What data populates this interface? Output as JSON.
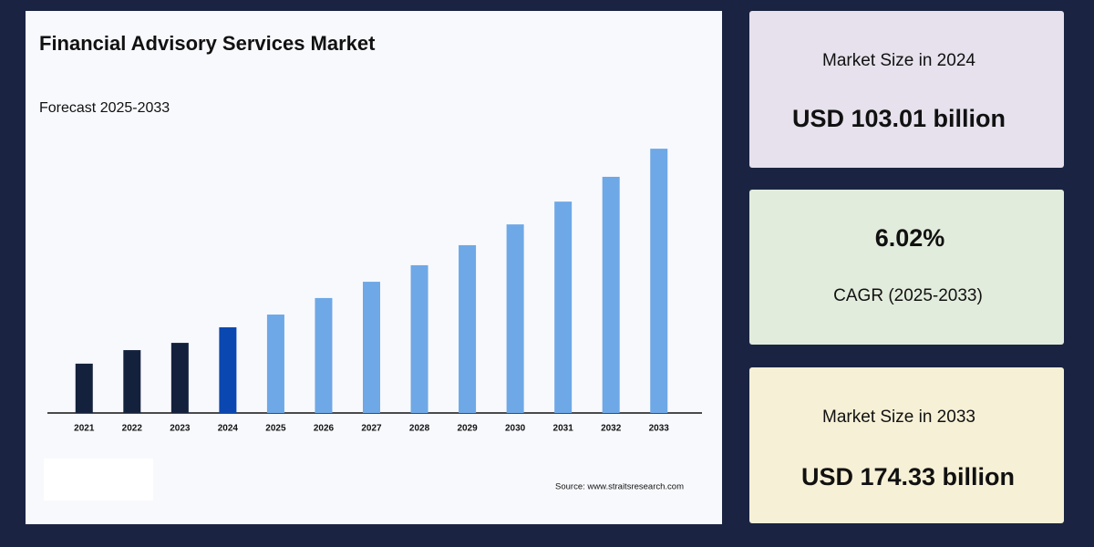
{
  "chart_data": {
    "type": "bar",
    "title": "Financial Advisory Services Market",
    "subtitle": "Forecast 2025-2033",
    "source": "Source: www.straitsresearch.com",
    "categories": [
      "2021",
      "2022",
      "2023",
      "2024",
      "2025",
      "2026",
      "2027",
      "2028",
      "2029",
      "2030",
      "2031",
      "2032",
      "2033"
    ],
    "values": [
      88.5,
      93.9,
      96.8,
      103.01,
      108.1,
      114.7,
      121.2,
      127.8,
      135.8,
      144.1,
      153.2,
      163.1,
      174.33
    ],
    "colors": [
      "#14213d",
      "#14213d",
      "#14213d",
      "#0a47b0",
      "#6ea8e6",
      "#6ea8e6",
      "#6ea8e6",
      "#6ea8e6",
      "#6ea8e6",
      "#6ea8e6",
      "#6ea8e6",
      "#6ea8e6",
      "#6ea8e6"
    ],
    "ylim": [
      68.8,
      179.1
    ],
    "grid": false
  },
  "cards": [
    {
      "label": "Market Size in 2024",
      "value": "USD 103.01 billion"
    },
    {
      "label": "CAGR (2025-2033)",
      "value": "6.02%"
    },
    {
      "label": "Market Size in 2033",
      "value": "USD 174.33 billion"
    }
  ]
}
